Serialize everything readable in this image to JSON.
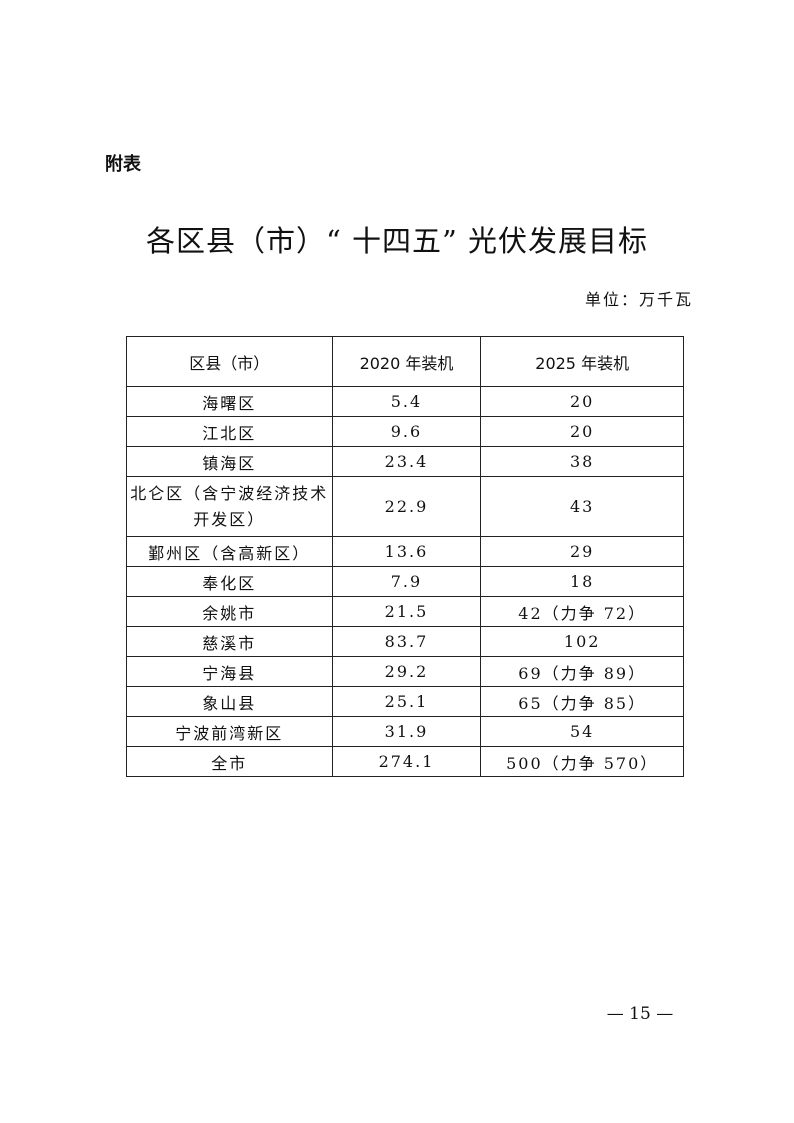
{
  "appendix_label": "附表",
  "title": "各区县（市）“ 十四五” 光伏发展目标",
  "unit": "单位：万千瓦",
  "table": {
    "headers": [
      "区县（市）",
      "2020 年装机",
      "2025 年装机"
    ],
    "rows": [
      [
        "海曙区",
        "5.4",
        "20"
      ],
      [
        "江北区",
        "9.6",
        "20"
      ],
      [
        "镇海区",
        "23.4",
        "38"
      ],
      [
        "北仑区（含宁波经济技术开发区）",
        "22.9",
        "43"
      ],
      [
        "鄞州区（含高新区）",
        "13.6",
        "29"
      ],
      [
        "奉化区",
        "7.9",
        "18"
      ],
      [
        "余姚市",
        "21.5",
        "42（力争 72）"
      ],
      [
        "慈溪市",
        "83.7",
        "102"
      ],
      [
        "宁海县",
        "29.2",
        "69（力争 89）"
      ],
      [
        "象山县",
        "25.1",
        "65（力争 85）"
      ],
      [
        "宁波前湾新区",
        "31.9",
        "54"
      ],
      [
        "全市",
        "274.1",
        "500（力争 570）"
      ]
    ]
  },
  "page_number": "— 15 —"
}
